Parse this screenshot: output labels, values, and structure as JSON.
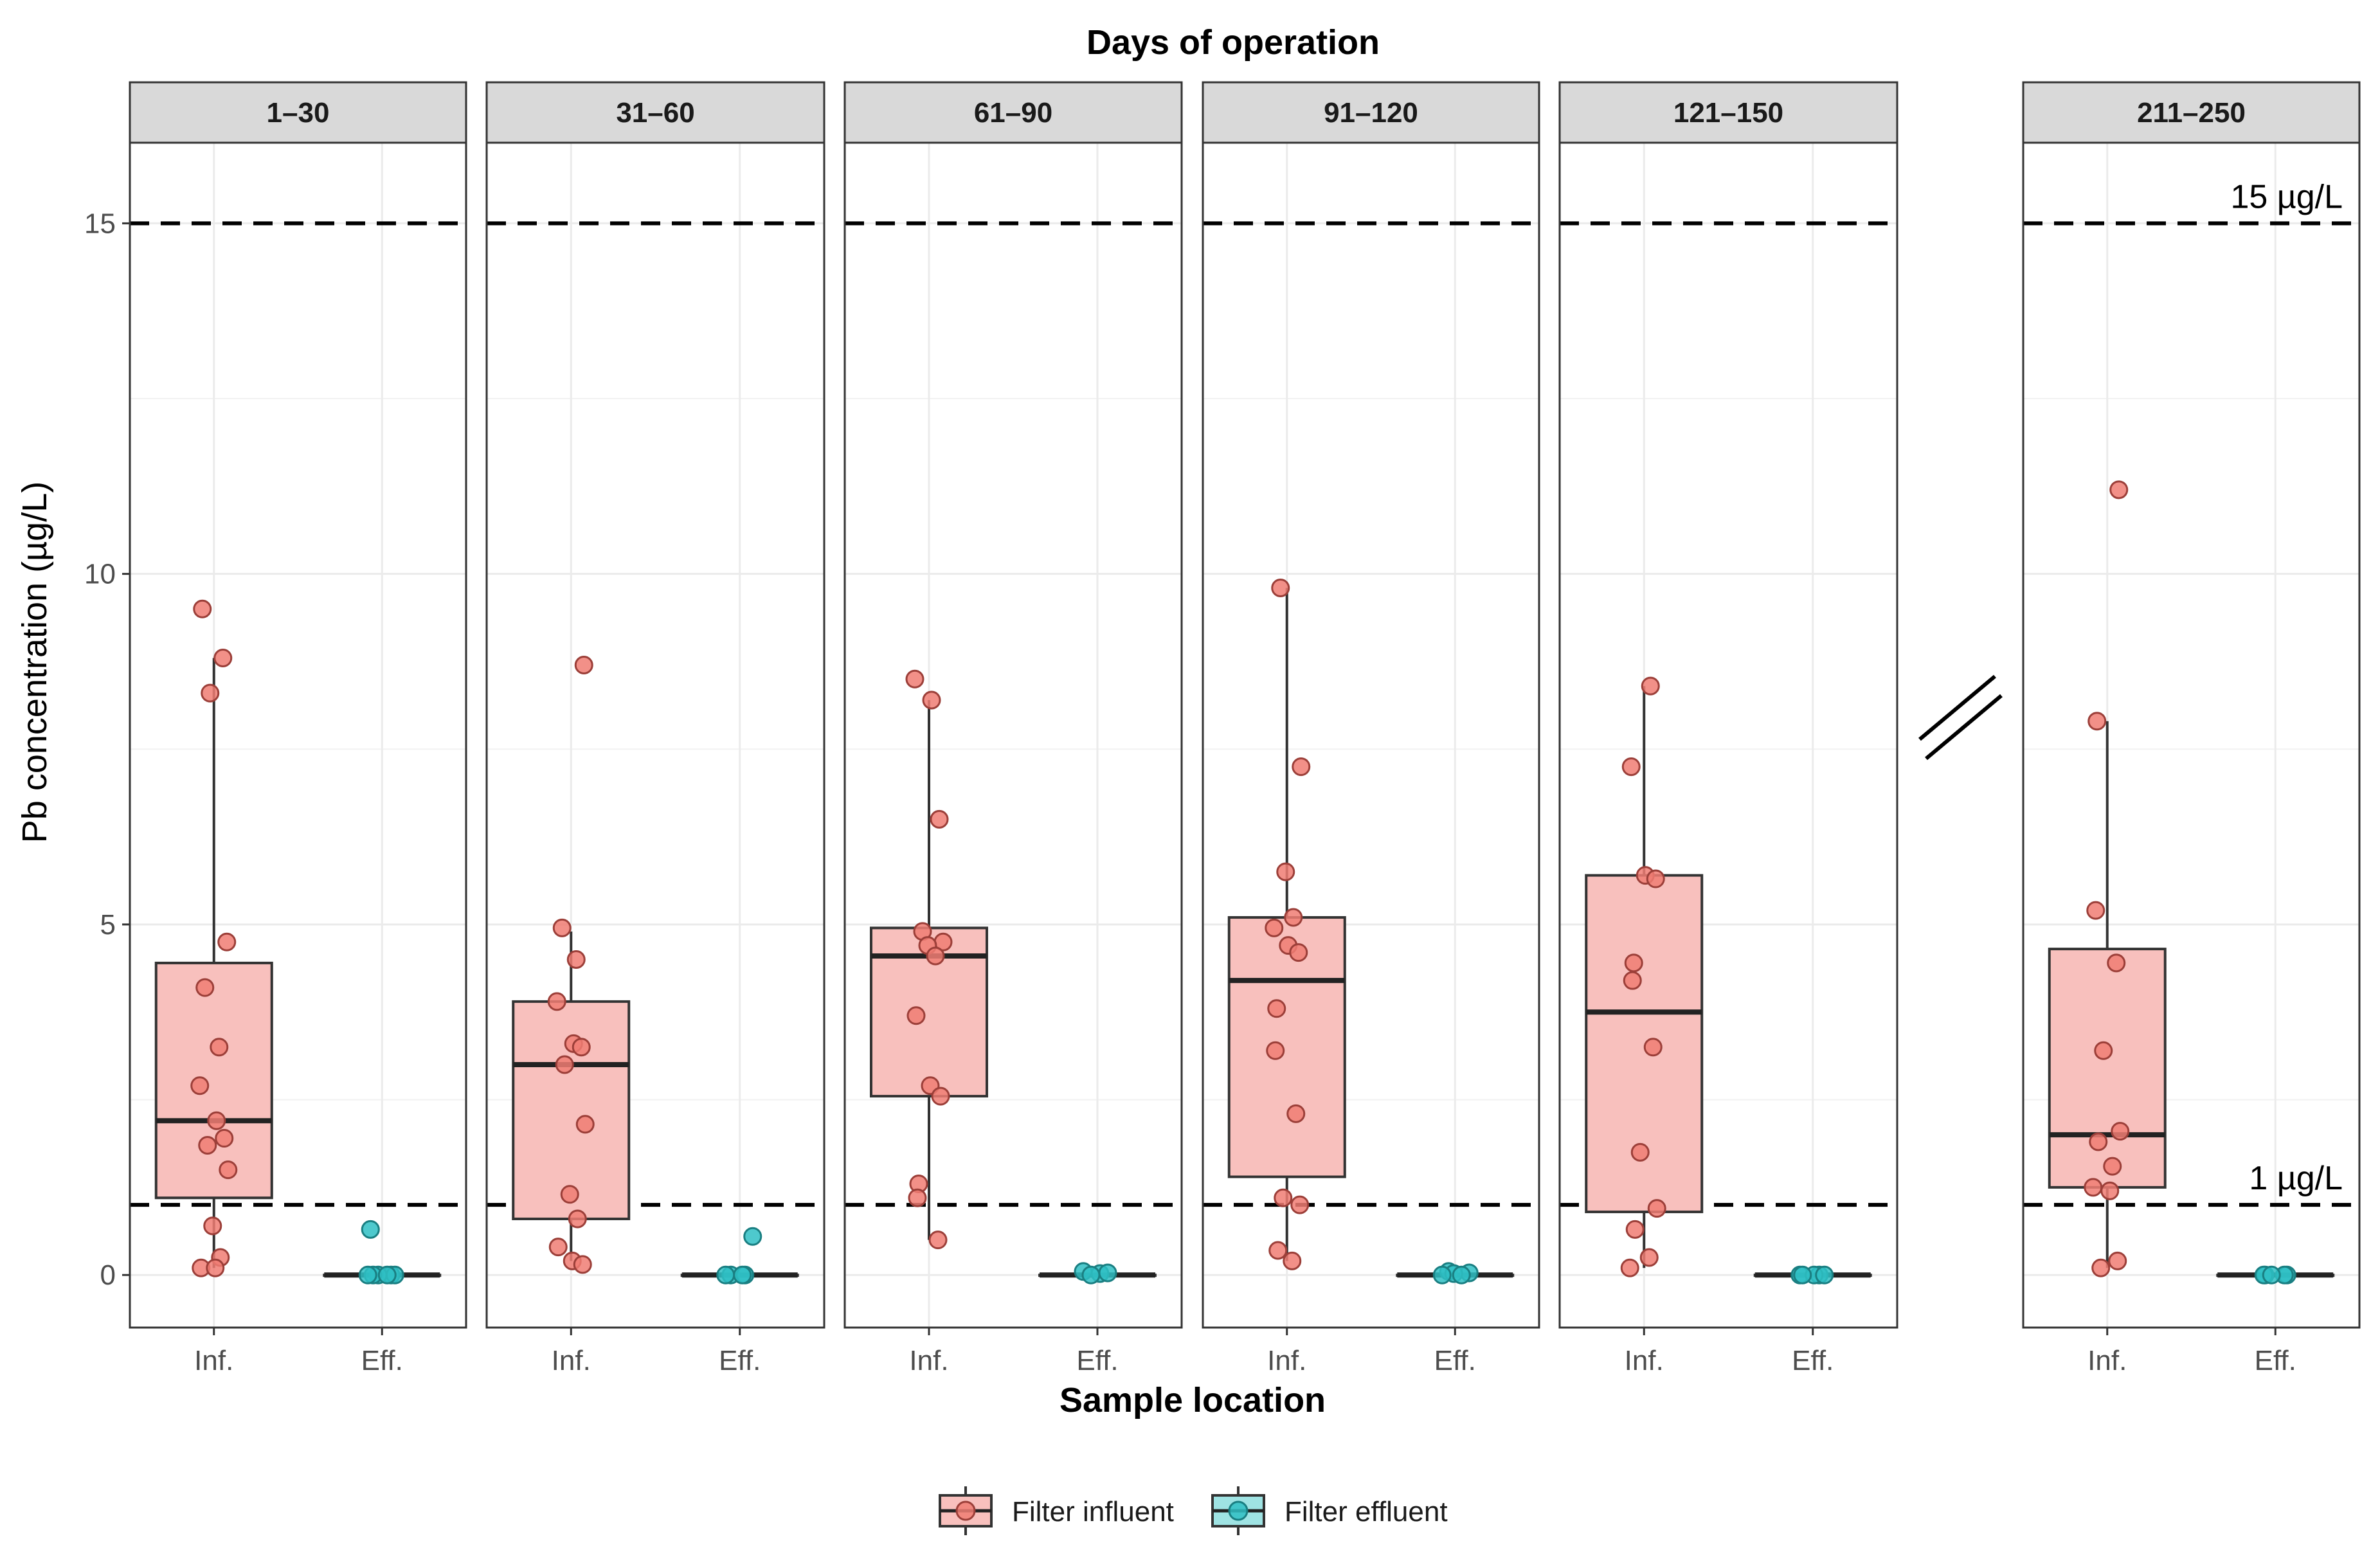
{
  "chart_data": {
    "type": "box",
    "title": "Days of operation",
    "xlabel": "Sample location",
    "ylabel": "Pb concentration (µg/L)",
    "ylim": [
      -0.75,
      16.15
    ],
    "yticks": [
      0,
      5,
      10,
      15
    ],
    "grid": true,
    "legend_position": "bottom",
    "categories": [
      "Inf.",
      "Eff."
    ],
    "series": [
      {
        "key": "inf",
        "name": "Filter influent",
        "fill": "#f8c0bd",
        "point": "#f07d73",
        "point_stroke": "#9c3f39"
      },
      {
        "key": "eff",
        "name": "Filter effluent",
        "fill": "#9fe3e3",
        "point": "#2fc0c4",
        "point_stroke": "#1a7f82"
      }
    ],
    "reference_lines": [
      {
        "value": 15,
        "label": "15 µg/L"
      },
      {
        "value": 1,
        "label": "1 µg/L"
      }
    ],
    "panels": [
      {
        "label": "1–30",
        "inf": {
          "q1": 1.1,
          "median": 2.2,
          "q3": 4.45,
          "whisker_low": 0.1,
          "whisker_high": 8.8,
          "points": [
            9.5,
            8.8,
            8.3,
            4.75,
            4.1,
            3.25,
            2.7,
            2.2,
            1.95,
            1.85,
            1.5,
            0.7,
            0.25,
            0.1,
            0.1
          ]
        },
        "eff": {
          "q1": 0.0,
          "median": 0.0,
          "q3": 0.0,
          "whisker_low": 0.0,
          "whisker_high": 0.0,
          "points": [
            0.65,
            0.0,
            0.0,
            0.0,
            0.0,
            0.0,
            0.0
          ]
        }
      },
      {
        "label": "31–60",
        "inf": {
          "q1": 0.8,
          "median": 3.0,
          "q3": 3.9,
          "whisker_low": 0.2,
          "whisker_high": 4.9,
          "points": [
            8.7,
            4.95,
            4.5,
            3.9,
            3.3,
            3.25,
            3.0,
            2.15,
            1.15,
            0.8,
            0.4,
            0.2,
            0.15
          ]
        },
        "eff": {
          "q1": 0.0,
          "median": 0.0,
          "q3": 0.0,
          "whisker_low": 0.0,
          "whisker_high": 0.0,
          "points": [
            0.55,
            0.0,
            0.0,
            0.0,
            0.0
          ]
        }
      },
      {
        "label": "61–90",
        "inf": {
          "q1": 2.55,
          "median": 4.55,
          "q3": 4.95,
          "whisker_low": 0.5,
          "whisker_high": 8.2,
          "points": [
            8.5,
            8.2,
            6.5,
            4.9,
            4.75,
            4.7,
            4.55,
            3.7,
            2.7,
            2.55,
            1.3,
            1.1,
            0.5
          ]
        },
        "eff": {
          "q1": 0.0,
          "median": 0.0,
          "q3": 0.0,
          "whisker_low": 0.0,
          "whisker_high": 0.0,
          "points": [
            0.05,
            0.02,
            0.03,
            0.0
          ]
        }
      },
      {
        "label": "91–120",
        "inf": {
          "q1": 1.4,
          "median": 4.2,
          "q3": 5.1,
          "whisker_low": 0.2,
          "whisker_high": 9.8,
          "points": [
            9.8,
            7.25,
            5.75,
            5.1,
            4.95,
            4.7,
            4.6,
            3.8,
            3.2,
            2.3,
            1.1,
            1.0,
            0.35,
            0.2
          ]
        },
        "eff": {
          "q1": 0.0,
          "median": 0.0,
          "q3": 0.0,
          "whisker_low": 0.0,
          "whisker_high": 0.0,
          "points": [
            0.05,
            0.03,
            0.02,
            0.0,
            0.0
          ]
        }
      },
      {
        "label": "121–150",
        "inf": {
          "q1": 0.9,
          "median": 3.75,
          "q3": 5.7,
          "whisker_low": 0.1,
          "whisker_high": 8.4,
          "points": [
            8.4,
            7.25,
            5.7,
            5.65,
            4.45,
            4.2,
            3.25,
            1.75,
            0.95,
            0.65,
            0.25,
            0.1
          ]
        },
        "eff": {
          "q1": 0.0,
          "median": 0.0,
          "q3": 0.0,
          "whisker_low": 0.0,
          "whisker_high": 0.0,
          "points": [
            0.0,
            0.0,
            0.0,
            0.0,
            0.0
          ]
        }
      },
      {
        "label": "211–250",
        "inf": {
          "q1": 1.25,
          "median": 2.0,
          "q3": 4.65,
          "whisker_low": 0.1,
          "whisker_high": 7.9,
          "points": [
            11.2,
            7.9,
            5.2,
            4.45,
            3.2,
            2.05,
            1.9,
            1.55,
            1.25,
            1.2,
            0.2,
            0.1
          ]
        },
        "eff": {
          "q1": 0.0,
          "median": 0.0,
          "q3": 0.0,
          "whisker_low": 0.0,
          "whisker_high": 0.0,
          "points": [
            0.0,
            0.0,
            0.0,
            0.0,
            0.0
          ]
        }
      }
    ]
  }
}
